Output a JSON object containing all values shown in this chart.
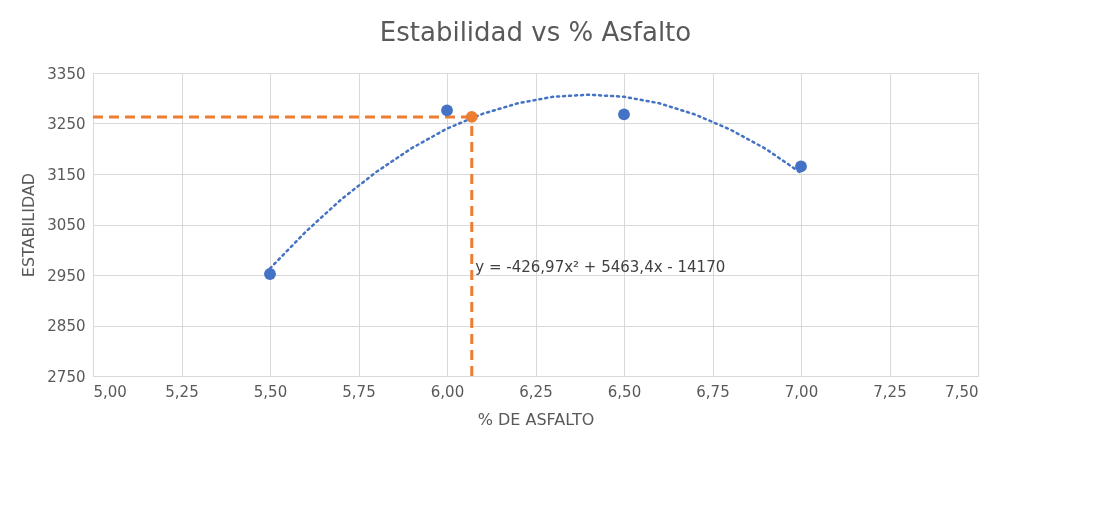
{
  "chart_data": {
    "type": "scatter",
    "title": "Estabilidad vs % Asfalto",
    "xlabel": "% DE ASFALTO",
    "ylabel": "ESTABILIDAD",
    "xlim": [
      5.0,
      7.5
    ],
    "xticks": [
      {
        "value": 5.0,
        "label": "5,00"
      },
      {
        "value": 5.25,
        "label": "5,25"
      },
      {
        "value": 5.5,
        "label": "5,50"
      },
      {
        "value": 5.75,
        "label": "5,75"
      },
      {
        "value": 6.0,
        "label": "6,00"
      },
      {
        "value": 6.25,
        "label": "6,25"
      },
      {
        "value": 6.5,
        "label": "6,50"
      },
      {
        "value": 6.75,
        "label": "6,75"
      },
      {
        "value": 7.0,
        "label": "7,00"
      },
      {
        "value": 7.25,
        "label": "7,25"
      },
      {
        "value": 7.5,
        "label": "7,50"
      }
    ],
    "ylim": [
      2750,
      3350
    ],
    "yticks": [
      2750,
      2850,
      2950,
      3050,
      3150,
      3250,
      3350
    ],
    "grid": true,
    "series": [
      {
        "type": "line",
        "color": "#4472c4",
        "line_style": "dotted",
        "marker": "none",
        "x": [
          5.5,
          5.6,
          5.7,
          5.8,
          5.9,
          6.0,
          6.1,
          6.2,
          6.3,
          6.4,
          6.5,
          6.6,
          6.7,
          6.8,
          6.9,
          7.0
        ],
        "values": [
          2963,
          3035,
          3099,
          3154,
          3201,
          3240,
          3269,
          3290,
          3303,
          3307,
          3303,
          3290,
          3268,
          3238,
          3200,
          3152
        ]
      },
      {
        "type": "line",
        "color": "#ed7d31",
        "line_style": "dashed",
        "marker": "none",
        "x": [
          5.0,
          6.07
        ],
        "values": [
          3263,
          3263
        ]
      },
      {
        "type": "line",
        "color": "#ed7d31",
        "line_style": "dashed",
        "marker": "none",
        "x": [
          6.07,
          6.07
        ],
        "values": [
          2750,
          3263
        ]
      },
      {
        "color": "#4472c4",
        "marker": "circle",
        "x": [
          5.5,
          6.0,
          6.5,
          7.0
        ],
        "values": [
          2952,
          3276,
          3268,
          3165
        ]
      },
      {
        "color": "#ed7d31",
        "marker": "circle",
        "x": [
          6.07
        ],
        "values": [
          3263
        ]
      }
    ],
    "annotations": [
      {
        "text": "y = -426,97x² + 5463,4x - 14170",
        "x": 6.08,
        "y": 2965
      }
    ]
  }
}
